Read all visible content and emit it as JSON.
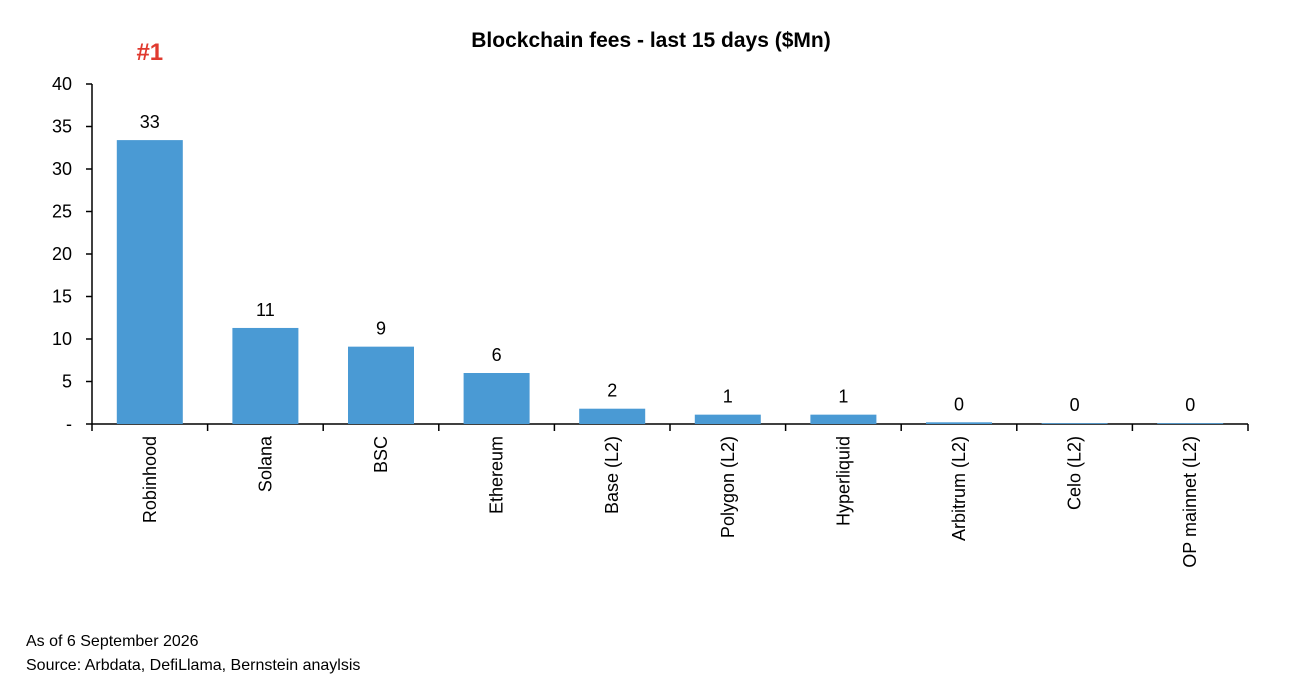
{
  "chart_data": {
    "type": "bar",
    "title": "Blockchain fees - last 15 days ($Mn)",
    "categories": [
      "Robinhood",
      "Solana",
      "BSC",
      "Ethereum",
      "Base (L2)",
      "Polygon (L2)",
      "Hyperliquid",
      "Arbitrum (L2)",
      "Celo (L2)",
      "OP mainnet (L2)"
    ],
    "values": [
      33.4,
      11.3,
      9.1,
      6.0,
      1.8,
      1.1,
      1.1,
      0.2,
      0.05,
      0.05
    ],
    "data_labels": [
      "33",
      "11",
      "9",
      "6",
      "2",
      "1",
      "1",
      "0",
      "0",
      "0"
    ],
    "ylim": [
      0,
      40
    ],
    "yticks": [
      0,
      5,
      10,
      15,
      20,
      25,
      30,
      35,
      40
    ],
    "ytick_labels": [
      "-",
      "5",
      "10",
      "15",
      "20",
      "25",
      "30",
      "35",
      "40"
    ],
    "grid": false,
    "bar_color": "#4a9ad4",
    "annotation": {
      "text": "#1",
      "target": "Robinhood",
      "color": "#e03a2f"
    }
  },
  "footnotes": {
    "as_of": "As of 6 September 2026",
    "source": "Source: Arbdata, DefiLlama, Bernstein anaylsis"
  }
}
